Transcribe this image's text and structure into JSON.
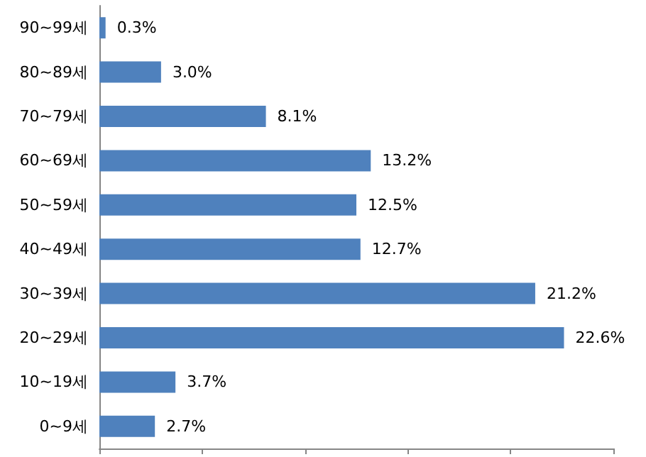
{
  "chart_data": {
    "type": "bar",
    "orientation": "horizontal",
    "categories": [
      "90~99세",
      "80~89세",
      "70~79세",
      "60~69세",
      "50~59세",
      "40~49세",
      "30~39세",
      "20~29세",
      "10~19세",
      "0~9세"
    ],
    "values": [
      0.3,
      3.0,
      8.1,
      13.2,
      12.5,
      12.7,
      21.2,
      22.6,
      3.7,
      2.7
    ],
    "value_labels": [
      "0.3%",
      "3.0%",
      "8.1%",
      "13.2%",
      "12.5%",
      "12.7%",
      "21.2%",
      "22.6%",
      "3.7%",
      "2.7%"
    ],
    "color": "#4f81bd",
    "xlim": [
      0,
      25
    ],
    "xticks": [
      {
        "value": 0,
        "label": null
      },
      {
        "value": 5,
        "label": null
      },
      {
        "value": 10,
        "label": null
      },
      {
        "value": 15,
        "label": null
      },
      {
        "value": 20,
        "label": null
      },
      {
        "value": 25,
        "label": null
      }
    ],
    "tick_labels": "y"
  }
}
